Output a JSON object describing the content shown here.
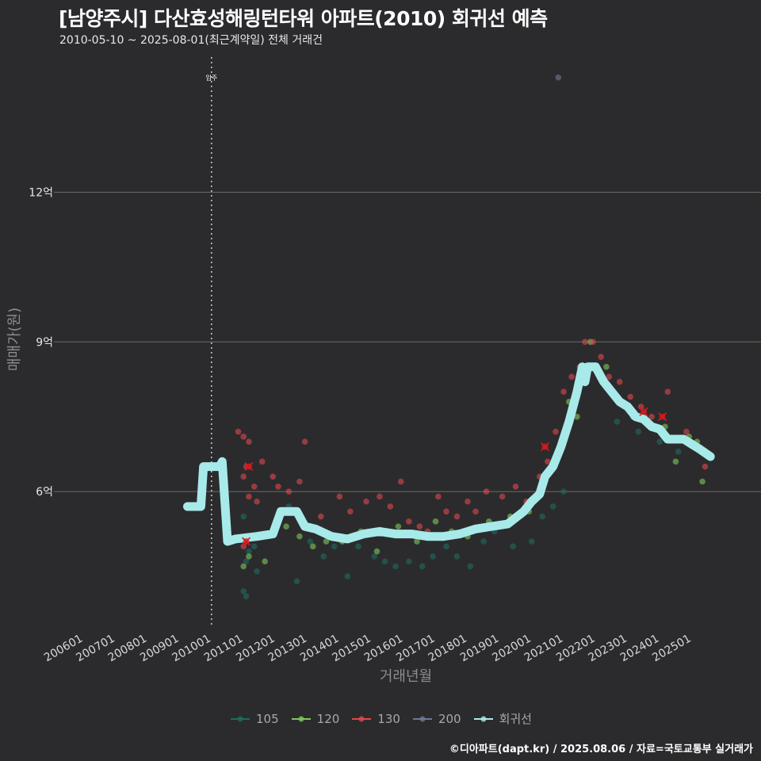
{
  "header": {
    "title": "[남양주시] 다산효성해링턴타워 아파트(2010) 회귀선 예측",
    "subtitle": "2010-05-10 ~ 2025-08-01(최근계약일) 전체 거래건"
  },
  "footer": {
    "credit": "©디아파트(dapt.kr) / 2025.08.06 / 자료=국토교통부 실거래가"
  },
  "colors": {
    "background": "#2b2b2d",
    "grid": "#6b6b6b",
    "s105": "#1f6b60",
    "s120": "#7ec85a",
    "s130": "#e0474c",
    "s200": "#6c7a94",
    "regression": "#a8eaea",
    "marker": "#d7191c"
  },
  "chart_data": {
    "type": "scatter",
    "title": "[남양주시] 다산효성해링턴타워 아파트(2010) 회귀선 예측",
    "subtitle": "2010-05-10 ~ 2025-08-01(최근계약일) 전체 거래건",
    "xlabel": "거래년월",
    "ylabel": "매매가(원)",
    "x_ticks": [
      "200601",
      "200701",
      "200801",
      "200901",
      "201001",
      "201101",
      "201201",
      "201301",
      "201401",
      "201501",
      "201601",
      "201701",
      "201801",
      "201901",
      "202001",
      "202101",
      "202201",
      "202301",
      "202401",
      "202501"
    ],
    "y_ticks": [
      {
        "value": 6,
        "label": "6억"
      },
      {
        "value": 9,
        "label": "9억"
      },
      {
        "value": 12,
        "label": "12억"
      }
    ],
    "xlim": [
      "2005-04",
      "2026-12"
    ],
    "ylim": [
      3.3,
      14.9
    ],
    "grid": "horizontal",
    "legend_position": "bottom",
    "annotation": {
      "label": "입주",
      "x": "2010-01"
    },
    "legend": [
      "105",
      "120",
      "130",
      "200",
      "회귀선"
    ],
    "series": [
      {
        "name": "105",
        "points": [
          [
            "2011-01",
            5.5
          ],
          [
            "2011-02",
            4.6
          ],
          [
            "2011-01",
            4.0
          ],
          [
            "2011-02",
            3.9
          ],
          [
            "2011-03",
            4.8
          ],
          [
            "2011-05",
            4.9
          ],
          [
            "2011-06",
            4.4
          ],
          [
            "2012-06",
            5.7
          ],
          [
            "2012-09",
            4.2
          ],
          [
            "2013-02",
            5.0
          ],
          [
            "2013-07",
            4.7
          ],
          [
            "2013-11",
            4.9
          ],
          [
            "2014-04",
            4.3
          ],
          [
            "2014-08",
            4.9
          ],
          [
            "2015-02",
            4.7
          ],
          [
            "2015-06",
            4.6
          ],
          [
            "2015-10",
            4.5
          ],
          [
            "2016-03",
            4.6
          ],
          [
            "2016-08",
            4.5
          ],
          [
            "2016-12",
            4.7
          ],
          [
            "2017-05",
            4.9
          ],
          [
            "2017-09",
            4.7
          ],
          [
            "2018-02",
            4.5
          ],
          [
            "2018-07",
            5.0
          ],
          [
            "2018-11",
            5.2
          ],
          [
            "2019-06",
            4.9
          ],
          [
            "2020-01",
            5.0
          ],
          [
            "2020-05",
            5.5
          ],
          [
            "2020-09",
            5.7
          ],
          [
            "2021-01",
            6.0
          ],
          [
            "2022-09",
            7.4
          ],
          [
            "2023-05",
            7.2
          ],
          [
            "2024-01",
            7.0
          ],
          [
            "2024-08",
            6.8
          ]
        ]
      },
      {
        "name": "120",
        "points": [
          [
            "2011-01",
            4.5
          ],
          [
            "2011-03",
            4.7
          ],
          [
            "2011-02",
            5.1
          ],
          [
            "2011-09",
            4.6
          ],
          [
            "2012-05",
            5.3
          ],
          [
            "2012-10",
            5.1
          ],
          [
            "2013-03",
            4.9
          ],
          [
            "2013-08",
            5.0
          ],
          [
            "2014-02",
            5.0
          ],
          [
            "2014-09",
            5.2
          ],
          [
            "2015-03",
            4.8
          ],
          [
            "2015-11",
            5.3
          ],
          [
            "2016-06",
            5.0
          ],
          [
            "2017-01",
            5.4
          ],
          [
            "2017-07",
            5.2
          ],
          [
            "2018-01",
            5.1
          ],
          [
            "2018-09",
            5.4
          ],
          [
            "2019-05",
            5.5
          ],
          [
            "2019-12",
            5.6
          ],
          [
            "2020-06",
            6.2
          ],
          [
            "2021-03",
            7.8
          ],
          [
            "2021-06",
            7.5
          ],
          [
            "2021-11",
            9.0
          ],
          [
            "2022-05",
            8.5
          ],
          [
            "2023-03",
            7.5
          ],
          [
            "2024-03",
            7.3
          ],
          [
            "2024-07",
            6.6
          ],
          [
            "2024-12",
            7.1
          ],
          [
            "2025-03",
            7.0
          ],
          [
            "2025-05",
            6.2
          ]
        ]
      },
      {
        "name": "130",
        "points": [
          [
            "2010-11",
            7.2
          ],
          [
            "2011-01",
            7.1
          ],
          [
            "2011-03",
            7.0
          ],
          [
            "2011-02",
            6.5
          ],
          [
            "2011-01",
            6.3
          ],
          [
            "2011-05",
            6.1
          ],
          [
            "2011-08",
            6.6
          ],
          [
            "2011-12",
            6.3
          ],
          [
            "2012-02",
            6.1
          ],
          [
            "2012-06",
            6.0
          ],
          [
            "2012-10",
            6.2
          ],
          [
            "2012-12",
            7.0
          ],
          [
            "2011-03",
            5.9
          ],
          [
            "2011-06",
            5.8
          ],
          [
            "2013-06",
            5.5
          ],
          [
            "2014-01",
            5.9
          ],
          [
            "2014-05",
            5.6
          ],
          [
            "2014-11",
            5.8
          ],
          [
            "2015-04",
            5.9
          ],
          [
            "2015-08",
            5.7
          ],
          [
            "2015-12",
            6.2
          ],
          [
            "2016-03",
            5.4
          ],
          [
            "2016-07",
            5.3
          ],
          [
            "2016-10",
            5.2
          ],
          [
            "2017-02",
            5.9
          ],
          [
            "2017-05",
            5.6
          ],
          [
            "2017-09",
            5.5
          ],
          [
            "2018-01",
            5.8
          ],
          [
            "2018-04",
            5.6
          ],
          [
            "2018-08",
            6.0
          ],
          [
            "2019-02",
            5.9
          ],
          [
            "2019-07",
            6.1
          ],
          [
            "2019-11",
            5.8
          ],
          [
            "2020-04",
            6.3
          ],
          [
            "2020-07",
            6.6
          ],
          [
            "2020-10",
            7.2
          ],
          [
            "2021-01",
            8.0
          ],
          [
            "2021-04",
            8.3
          ],
          [
            "2021-07",
            8.5
          ],
          [
            "2021-09",
            9.0
          ],
          [
            "2021-12",
            9.0
          ],
          [
            "2022-03",
            8.7
          ],
          [
            "2022-06",
            8.3
          ],
          [
            "2022-10",
            8.2
          ],
          [
            "2023-02",
            7.9
          ],
          [
            "2023-06",
            7.7
          ],
          [
            "2023-10",
            7.5
          ],
          [
            "2024-04",
            8.0
          ],
          [
            "2024-11",
            7.2
          ],
          [
            "2025-06",
            6.5
          ],
          [
            "2011-02",
            5.0
          ],
          [
            "2011-01",
            4.9
          ]
        ]
      },
      {
        "name": "200",
        "points": [
          [
            "2020-11",
            14.3
          ]
        ]
      }
    ],
    "highlight_points": [
      [
        "2011-02",
        5.0
      ],
      [
        "2011-03",
        6.5
      ],
      [
        "2020-06",
        6.9
      ],
      [
        "2023-07",
        7.6
      ],
      [
        "2024-02",
        7.5
      ]
    ],
    "regression": [
      [
        "2009-04",
        5.7
      ],
      [
        "2009-09",
        5.7
      ],
      [
        "2009-10",
        6.5
      ],
      [
        "2010-04",
        6.5
      ],
      [
        "2010-05",
        6.6
      ],
      [
        "2010-07",
        5.0
      ],
      [
        "2010-10",
        5.05
      ],
      [
        "2011-06",
        5.1
      ],
      [
        "2011-12",
        5.15
      ],
      [
        "2012-03",
        5.6
      ],
      [
        "2012-09",
        5.6
      ],
      [
        "2012-12",
        5.3
      ],
      [
        "2013-04",
        5.25
      ],
      [
        "2013-10",
        5.1
      ],
      [
        "2014-04",
        5.05
      ],
      [
        "2014-10",
        5.15
      ],
      [
        "2015-04",
        5.2
      ],
      [
        "2015-10",
        5.15
      ],
      [
        "2016-04",
        5.15
      ],
      [
        "2016-10",
        5.1
      ],
      [
        "2017-04",
        5.1
      ],
      [
        "2017-10",
        5.15
      ],
      [
        "2018-04",
        5.25
      ],
      [
        "2018-10",
        5.3
      ],
      [
        "2019-04",
        5.35
      ],
      [
        "2019-10",
        5.6
      ],
      [
        "2020-01",
        5.8
      ],
      [
        "2020-04",
        5.95
      ],
      [
        "2020-06",
        6.3
      ],
      [
        "2020-09",
        6.5
      ],
      [
        "2020-12",
        6.9
      ],
      [
        "2021-03",
        7.4
      ],
      [
        "2021-06",
        8.0
      ],
      [
        "2021-08",
        8.5
      ],
      [
        "2021-09",
        8.2
      ],
      [
        "2021-10",
        8.5
      ],
      [
        "2022-01",
        8.5
      ],
      [
        "2022-04",
        8.2
      ],
      [
        "2022-07",
        8.0
      ],
      [
        "2022-10",
        7.8
      ],
      [
        "2023-01",
        7.7
      ],
      [
        "2023-04",
        7.5
      ],
      [
        "2023-07",
        7.45
      ],
      [
        "2023-10",
        7.3
      ],
      [
        "2024-01",
        7.25
      ],
      [
        "2024-04",
        7.05
      ],
      [
        "2024-10",
        7.05
      ],
      [
        "2025-01",
        6.95
      ],
      [
        "2025-04",
        6.85
      ],
      [
        "2025-08",
        6.7
      ]
    ]
  }
}
